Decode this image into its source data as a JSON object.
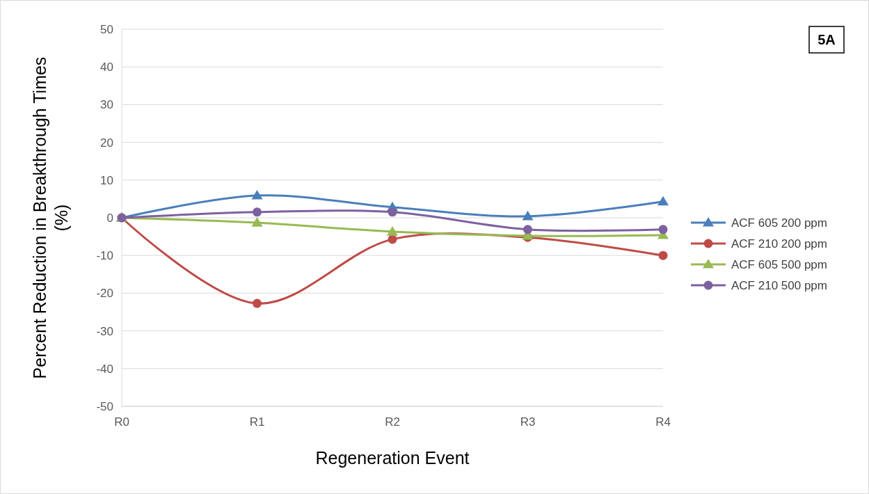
{
  "chart_data": {
    "type": "line",
    "xlabel": "Regeneration Event",
    "ylabel": "Percent Reduction in Breakthrough Times (%)",
    "annotations": [
      "5A"
    ],
    "categories": [
      "R0",
      "R1",
      "R2",
      "R3",
      "R4"
    ],
    "series": [
      {
        "name": "ACF 605 200 ppm",
        "color": "#4a7ebb",
        "marker": "triangle",
        "values": [
          0,
          5.9,
          2.8,
          0.4,
          4.3
        ]
      },
      {
        "name": "ACF 210 200 ppm",
        "color": "#be4b48",
        "marker": "circle",
        "values": [
          0,
          -22.7,
          -5.7,
          -5.2,
          -10
        ]
      },
      {
        "name": "ACF 605 500 ppm",
        "color": "#98b954",
        "marker": "triangle",
        "values": [
          0,
          -1.3,
          -3.7,
          -4.8,
          -4.6
        ]
      },
      {
        "name": "ACF 210 500 ppm",
        "color": "#7d60a0",
        "marker": "circle",
        "values": [
          0,
          1.5,
          1.5,
          -3.1,
          -3.1
        ]
      }
    ],
    "ylim": [
      -50,
      50
    ],
    "yticks": [
      -50,
      -40,
      -30,
      -20,
      -10,
      0,
      10,
      20,
      30,
      40,
      50
    ],
    "grid": "y",
    "legend": "right"
  }
}
